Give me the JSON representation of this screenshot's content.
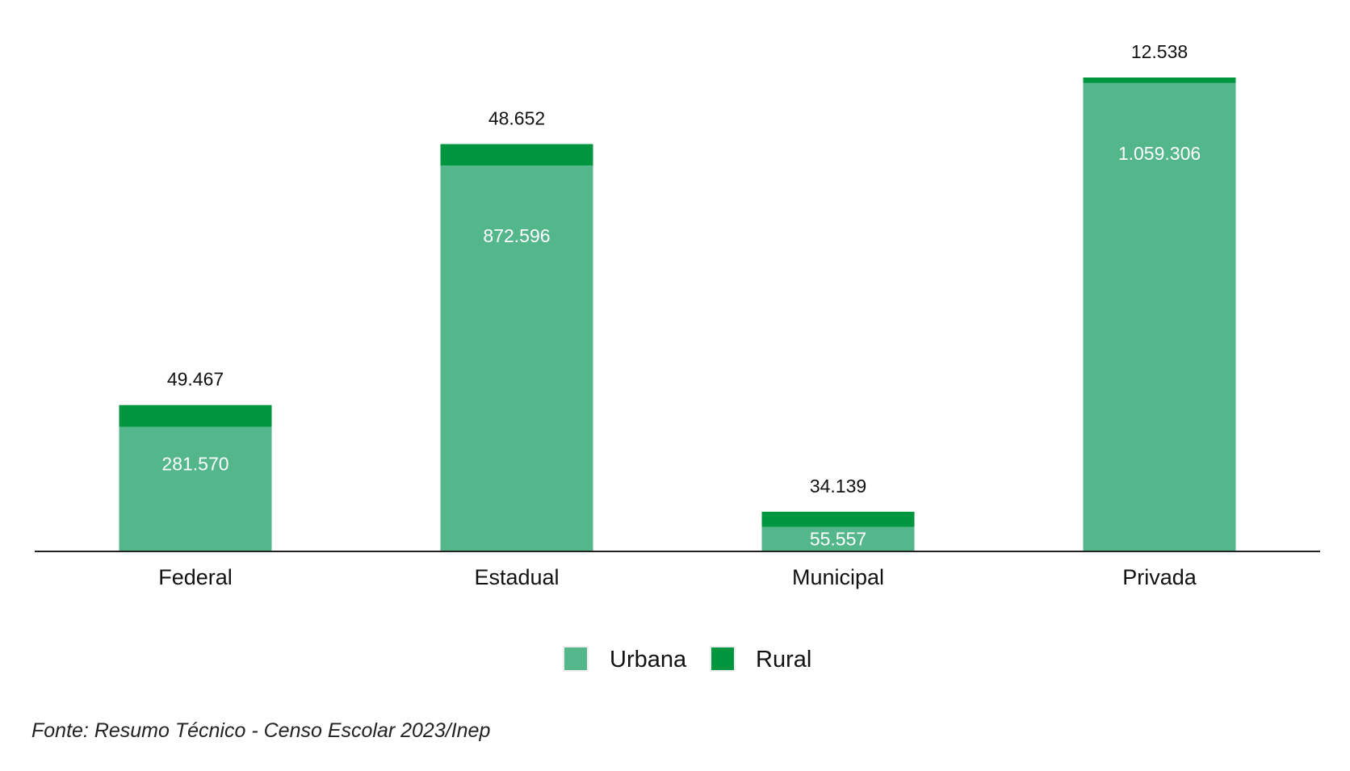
{
  "chart_data": {
    "type": "bar",
    "stacked": true,
    "categories": [
      "Federal",
      "Estadual",
      "Municipal",
      "Privada"
    ],
    "series": [
      {
        "name": "Urbana",
        "color": "#54B78C",
        "values": [
          281570,
          872596,
          55557,
          1059306
        ],
        "labels": [
          "281.570",
          "872.596",
          "55.557",
          "1.059.306"
        ]
      },
      {
        "name": "Rural",
        "color": "#009640",
        "values": [
          49467,
          48652,
          34139,
          12538
        ],
        "labels": [
          "49.467",
          "48.652",
          "34.139",
          "12.538"
        ]
      }
    ],
    "title": "",
    "xlabel": "",
    "ylabel": "",
    "grid": false,
    "legend_position": "bottom",
    "source": "Fonte: Resumo Técnico - Censo Escolar 2023/Inep"
  }
}
